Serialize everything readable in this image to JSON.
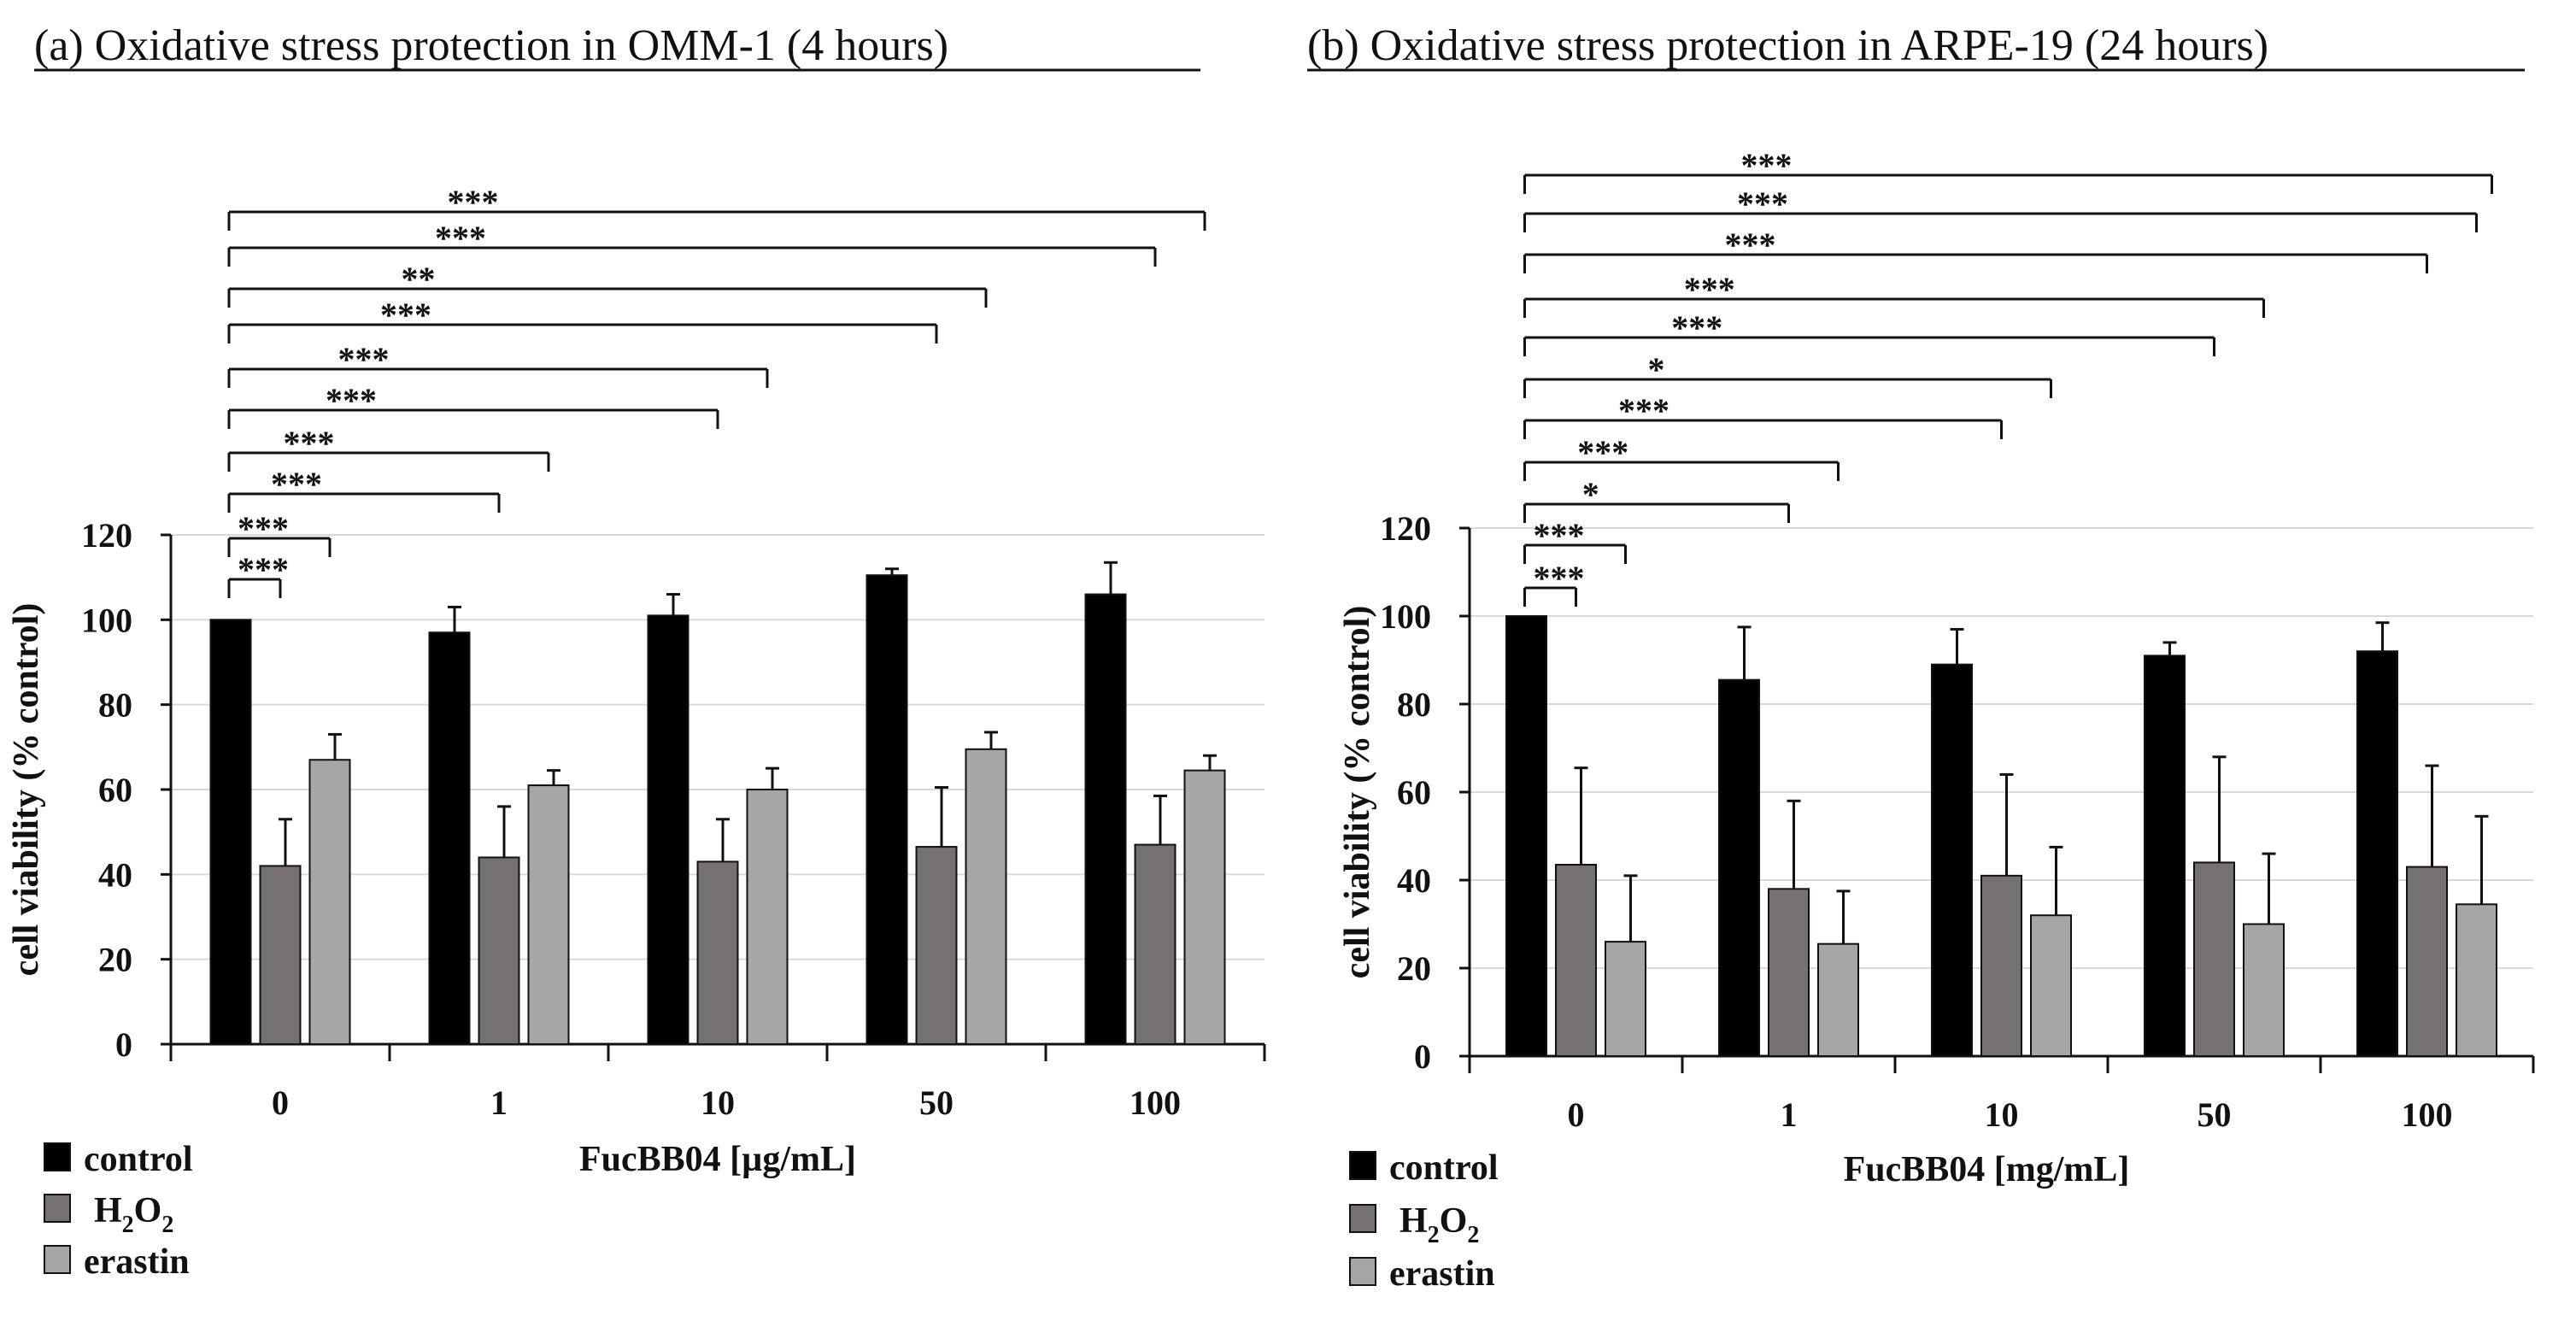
{
  "chart_data": [
    {
      "type": "bar",
      "title": "(a) Oxidative stress protection in OMM-1 (4 hours)",
      "xlabel": "FucBB04 [µg/mL]",
      "ylabel": "cell viability (% control)",
      "ylim": [
        0,
        120
      ],
      "yticks": [
        0,
        20,
        40,
        60,
        80,
        100,
        120
      ],
      "categories": [
        "0",
        "1",
        "10",
        "50",
        "100"
      ],
      "series": [
        {
          "name": "control",
          "color": "#000000",
          "values": [
            100,
            97,
            101,
            110.5,
            106
          ],
          "errors": [
            0,
            6,
            5,
            1.5,
            7.5
          ]
        },
        {
          "name": "H2O2",
          "color": "#767171",
          "values": [
            42,
            44,
            43,
            46.5,
            47
          ],
          "errors": [
            11,
            12,
            10,
            14,
            11.5
          ]
        },
        {
          "name": "erastin",
          "color": "#a6a6a6",
          "values": [
            67,
            61,
            60,
            69.5,
            64.5
          ],
          "errors": [
            6,
            3.5,
            5,
            4,
            3.5
          ]
        }
      ],
      "legend": {
        "position": "bottom-left",
        "items": [
          {
            "label": "control",
            "color": "#000000"
          },
          {
            "label": "H",
            "sub": "2",
            "mid": "O",
            "sub2": "2",
            "color": "#767171"
          },
          {
            "label": "erastin",
            "color": "#a6a6a6"
          }
        ]
      },
      "significance": [
        {
          "from": [
            0,
            0
          ],
          "to": [
            0,
            1
          ],
          "label": "***"
        },
        {
          "from": [
            0,
            0
          ],
          "to": [
            0,
            2
          ],
          "label": "***"
        },
        {
          "from": [
            0,
            0
          ],
          "to": [
            1,
            1
          ],
          "label": "***"
        },
        {
          "from": [
            0,
            0
          ],
          "to": [
            1,
            2
          ],
          "label": "***"
        },
        {
          "from": [
            0,
            0
          ],
          "to": [
            2,
            1
          ],
          "label": "***"
        },
        {
          "from": [
            0,
            0
          ],
          "to": [
            2,
            2
          ],
          "label": "***"
        },
        {
          "from": [
            0,
            0
          ],
          "to": [
            3,
            1
          ],
          "label": "***"
        },
        {
          "from": [
            0,
            0
          ],
          "to": [
            3,
            2
          ],
          "label": "**"
        },
        {
          "from": [
            0,
            0
          ],
          "to": [
            4,
            1
          ],
          "label": "***"
        },
        {
          "from": [
            0,
            0
          ],
          "to": [
            4,
            2
          ],
          "label": "***"
        }
      ]
    },
    {
      "type": "bar",
      "title": "(b) Oxidative stress protection in ARPE-19 (24 hours)",
      "xlabel": "FucBB04 [mg/mL]",
      "ylabel": "cell viability (% control)",
      "ylim": [
        0,
        120
      ],
      "yticks": [
        0,
        20,
        40,
        60,
        80,
        100,
        120
      ],
      "categories": [
        "0",
        "1",
        "10",
        "50",
        "100"
      ],
      "series": [
        {
          "name": "control",
          "color": "#000000",
          "values": [
            100,
            85.5,
            89,
            91,
            92
          ],
          "errors": [
            0,
            12,
            8,
            3,
            6.5
          ]
        },
        {
          "name": "H2O2",
          "color": "#767171",
          "values": [
            43.5,
            38,
            41,
            44,
            43
          ],
          "errors": [
            22,
            20,
            23,
            24,
            23
          ]
        },
        {
          "name": "erastin",
          "color": "#a6a6a6",
          "values": [
            26,
            25.5,
            32,
            30,
            34.5
          ],
          "errors": [
            15,
            12,
            15.5,
            16,
            20
          ]
        }
      ],
      "legend": {
        "position": "bottom-left",
        "items": [
          {
            "label": "control",
            "color": "#000000"
          },
          {
            "label": "H",
            "sub": "2",
            "mid": "O",
            "sub2": "2",
            "color": "#767171"
          },
          {
            "label": "erastin",
            "color": "#a6a6a6"
          }
        ]
      },
      "significance": [
        {
          "from": [
            0,
            0
          ],
          "to": [
            0,
            1
          ],
          "label": "***"
        },
        {
          "from": [
            0,
            0
          ],
          "to": [
            0,
            2
          ],
          "label": "***"
        },
        {
          "from": [
            0,
            0
          ],
          "to": [
            1,
            1
          ],
          "label": "*"
        },
        {
          "from": [
            0,
            0
          ],
          "to": [
            1,
            2
          ],
          "label": "***"
        },
        {
          "from": [
            0,
            0
          ],
          "to": [
            2,
            1
          ],
          "label": "***"
        },
        {
          "from": [
            0,
            0
          ],
          "to": [
            2,
            2
          ],
          "label": "*"
        },
        {
          "from": [
            0,
            0
          ],
          "to": [
            3,
            1
          ],
          "label": "***"
        },
        {
          "from": [
            0,
            0
          ],
          "to": [
            3,
            2
          ],
          "label": "***"
        },
        {
          "from": [
            0,
            0
          ],
          "to": [
            4,
            1
          ],
          "label": "***"
        },
        {
          "from": [
            0,
            0
          ],
          "to": [
            4,
            2
          ],
          "label": "***"
        },
        {
          "from": [
            0,
            0
          ],
          "to": [
            4,
            3
          ],
          "label": "***"
        }
      ]
    }
  ]
}
